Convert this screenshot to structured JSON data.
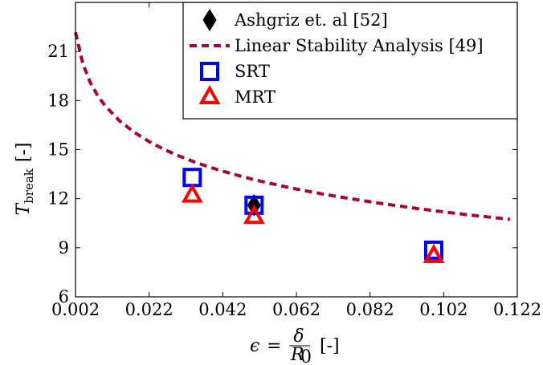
{
  "chart_data": {
    "type": "scatter",
    "xlabel_parts": {
      "epsilon": "ϵ",
      "eq": "=",
      "delta": "δ",
      "R": "R",
      "zero": "0",
      "unit": "[-]"
    },
    "ylabel_parts": {
      "T": "T",
      "sub": "break",
      "unit": "[-]"
    },
    "xlim": [
      0.002,
      0.122
    ],
    "ylim": [
      6,
      24
    ],
    "xticks": [
      0.002,
      0.022,
      0.042,
      0.062,
      0.082,
      0.102,
      0.122
    ],
    "xtick_labels": [
      "0.002",
      "0.022",
      "0.042",
      "0.062",
      "0.082",
      "0.102",
      "0.122"
    ],
    "yticks": [
      6,
      9,
      12,
      15,
      18,
      21
    ],
    "ytick_labels": [
      "6",
      "9",
      "12",
      "15",
      "18",
      "21"
    ],
    "grid": false,
    "legend_position": "top-right",
    "series": [
      {
        "name": "Ashgriz et. al [52]",
        "kind": "marker",
        "marker": "diamond",
        "color": "#000000",
        "points": [
          {
            "x": 0.0505,
            "y": 11.6
          }
        ]
      },
      {
        "name": "Linear Stability Analysis [49]",
        "kind": "curve",
        "color": "#a8003b",
        "line_style": "dashed",
        "x": [
          0.002,
          0.004,
          0.006,
          0.008,
          0.01,
          0.014,
          0.018,
          0.022,
          0.026,
          0.03,
          0.034,
          0.038,
          0.042,
          0.046,
          0.05,
          0.055,
          0.06,
          0.065,
          0.07,
          0.075,
          0.08,
          0.085,
          0.09,
          0.095,
          0.1,
          0.105,
          0.11,
          0.115,
          0.12
        ],
        "y": [
          22.17,
          20.24,
          19.11,
          18.31,
          17.69,
          16.75,
          16.05,
          15.49,
          15.02,
          14.62,
          14.27,
          13.96,
          13.68,
          13.43,
          13.19,
          12.93,
          12.68,
          12.46,
          12.25,
          12.06,
          11.88,
          11.71,
          11.55,
          11.39,
          11.25,
          11.11,
          10.98,
          10.86,
          10.74
        ]
      },
      {
        "name": "SRT",
        "kind": "marker",
        "marker": "square",
        "color": "#0000ff",
        "points": [
          {
            "x": 0.0337,
            "y": 13.3
          },
          {
            "x": 0.0505,
            "y": 11.6
          },
          {
            "x": 0.0993,
            "y": 8.85
          }
        ]
      },
      {
        "name": "MRT",
        "kind": "marker",
        "marker": "triangle",
        "color": "#ff0000",
        "points": [
          {
            "x": 0.0337,
            "y": 12.2
          },
          {
            "x": 0.0505,
            "y": 10.9
          },
          {
            "x": 0.0993,
            "y": 8.5
          }
        ]
      }
    ]
  }
}
